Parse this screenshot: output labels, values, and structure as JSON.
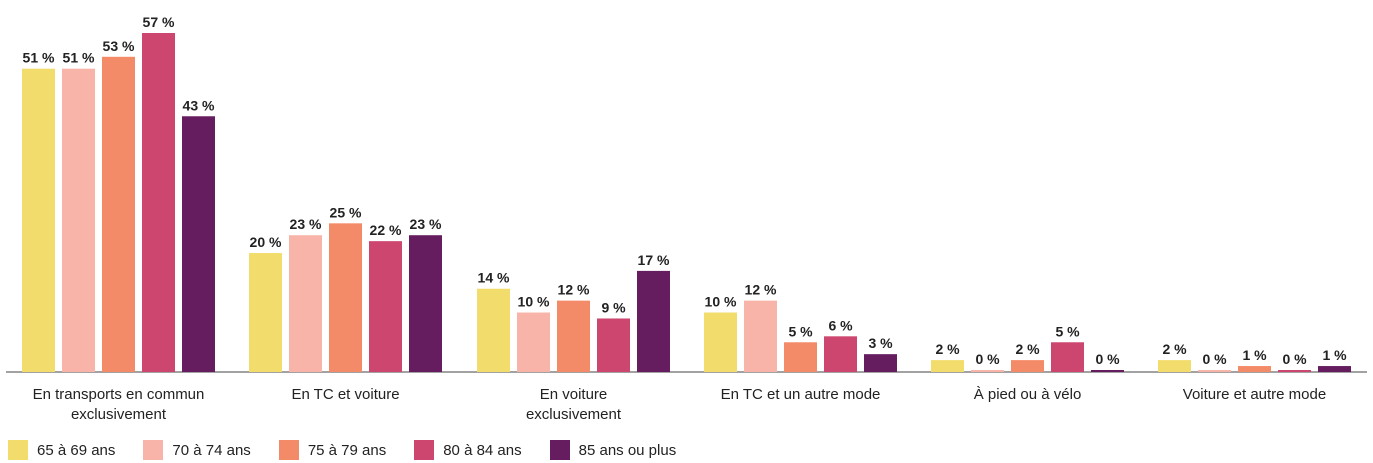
{
  "chart_data": {
    "type": "bar",
    "categories": [
      [
        "En transports en commun",
        "exclusivement"
      ],
      [
        "En TC et voiture"
      ],
      [
        "En voiture",
        "exclusivement"
      ],
      [
        "En TC et un autre mode"
      ],
      [
        "À pied ou à vélo"
      ],
      [
        "Voiture et autre mode"
      ]
    ],
    "series": [
      {
        "name": "65 à 69 ans",
        "color": "#F2DC6B",
        "values": [
          51,
          20,
          14,
          10,
          2,
          2
        ]
      },
      {
        "name": "70 à 74 ans",
        "color": "#F8B4A8",
        "values": [
          51,
          23,
          10,
          12,
          0,
          0
        ]
      },
      {
        "name": "75 à 79 ans",
        "color": "#F48B68",
        "values": [
          53,
          25,
          12,
          5,
          2,
          1
        ]
      },
      {
        "name": "80 à 84 ans",
        "color": "#CC4670",
        "values": [
          57,
          22,
          9,
          6,
          5,
          0
        ]
      },
      {
        "name": "85 ans ou plus",
        "color": "#651D5F",
        "values": [
          43,
          23,
          17,
          3,
          0,
          1
        ]
      }
    ],
    "value_suffix": " %",
    "ylim": [
      0,
      57
    ],
    "grid": false,
    "legend_position": "bottom-left"
  }
}
